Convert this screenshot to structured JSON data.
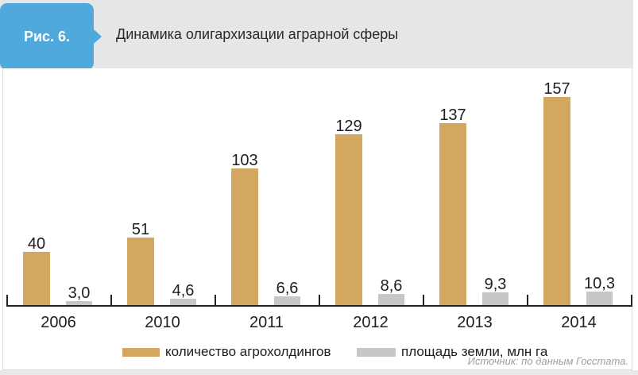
{
  "figure": {
    "badge_label": "Рис. 6.",
    "title": "Динамика олигархизации аграрной сферы"
  },
  "source": "Источник: по данным Госстата.",
  "colors": {
    "badge_bg": "#4FA9DC",
    "header_bg": "#E5E6E7",
    "bar_tan": "#D2A860",
    "bar_gray": "#C6C7C7",
    "axis": "#222222",
    "text": "#1E1E1E",
    "source_text": "#9BA0A4",
    "panel_border": "#D9DBDC",
    "footer_bg": "#E8E9EA"
  },
  "chart_data": {
    "type": "bar",
    "title": "Динамика олигархизации аграрной сферы",
    "categories": [
      "2006",
      "2010",
      "2011",
      "2012",
      "2013",
      "2014"
    ],
    "series": [
      {
        "name": "количество агрохолдингов",
        "color": "#D2A860",
        "values": [
          40,
          51,
          103,
          129,
          137,
          157
        ],
        "labels": [
          "40",
          "51",
          "103",
          "129",
          "137",
          "157"
        ]
      },
      {
        "name": "площадь земли, млн га",
        "color": "#C6C7C7",
        "values": [
          3.0,
          4.6,
          6.6,
          8.6,
          9.3,
          10.3
        ],
        "labels": [
          "3,0",
          "4,6",
          "6,6",
          "8,6",
          "9,3",
          "10,3"
        ]
      }
    ],
    "xlabel": "",
    "ylabel": "",
    "ylim": [
      0,
      165
    ],
    "grid": false,
    "value_labels": true,
    "legend_position": "bottom"
  }
}
